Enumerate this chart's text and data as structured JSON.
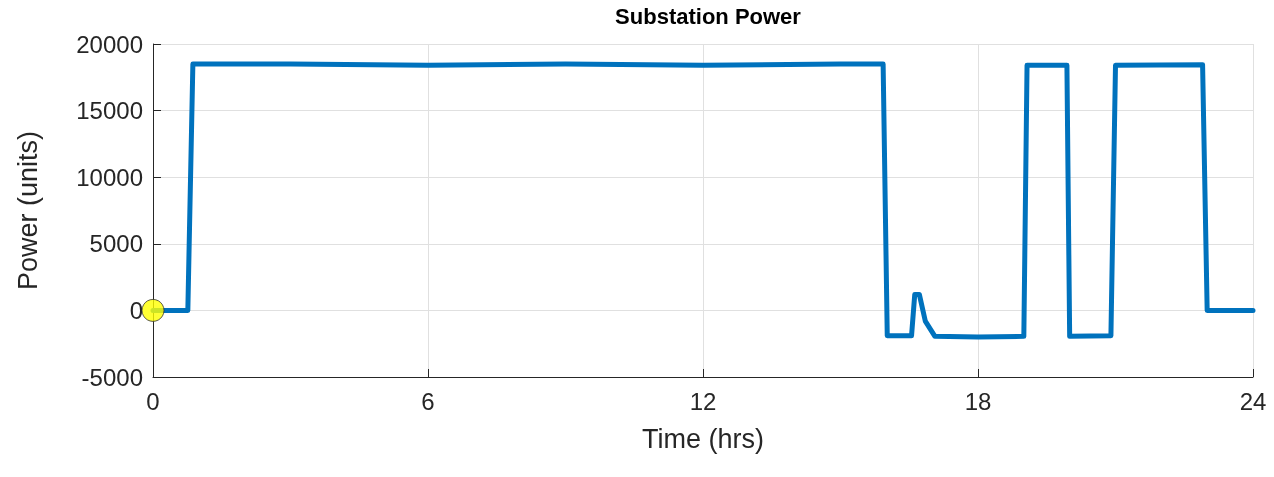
{
  "chart_data": {
    "type": "line",
    "title": "Substation Power",
    "xlabel": "Time (hrs)",
    "ylabel": "Power (units)",
    "series": [
      {
        "color": "#0072bd",
        "x": [
          0,
          0.76,
          0.87,
          3,
          6,
          9,
          12,
          15,
          15.93,
          16.02,
          16.55,
          16.62,
          16.72,
          16.85,
          17.06,
          18,
          19.0,
          19.07,
          19.94,
          20.0,
          20.9,
          21.0,
          22.9,
          23.0,
          24
        ],
        "values": [
          0,
          0,
          18500,
          18500,
          18400,
          18500,
          18400,
          18500,
          18500,
          -1900,
          -1900,
          1200,
          1200,
          -800,
          -1950,
          -2000,
          -1950,
          18400,
          18400,
          -1950,
          -1900,
          18400,
          18450,
          0,
          0
        ]
      },
      {
        "type": "scatter",
        "marker": "circle",
        "color": "#ffff00",
        "x": [
          0
        ],
        "values": [
          0
        ]
      }
    ],
    "xlim": [
      0,
      24
    ],
    "xticks": [
      0,
      6,
      12,
      18,
      24
    ],
    "ylim": [
      -5000,
      20000
    ],
    "yticks": [
      -5000,
      0,
      5000,
      10000,
      15000,
      20000
    ],
    "grid": true,
    "marker": "none",
    "line_style": "solid"
  }
}
